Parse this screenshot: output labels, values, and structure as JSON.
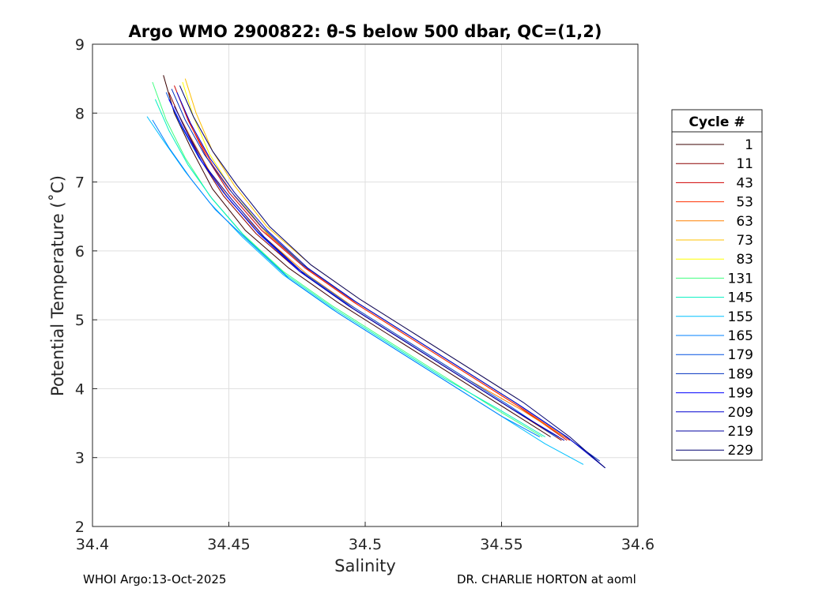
{
  "chart_data": {
    "type": "line",
    "title": "Argo WMO 2900822: θ-S below 500 dbar,  QC=(1,2)",
    "xlabel": "Salinity",
    "ylabel": "Potential Temperature (˚C)",
    "xlim": [
      34.4,
      34.6
    ],
    "ylim": [
      2,
      9
    ],
    "xticks": [
      "34.4",
      "34.45",
      "34.5",
      "34.55",
      "34.6"
    ],
    "yticks": [
      "2",
      "3",
      "4",
      "5",
      "6",
      "7",
      "8",
      "9"
    ],
    "grid": true,
    "legend": {
      "title": "Cycle #",
      "placement": "right-outside"
    },
    "series": [
      {
        "name": "1",
        "color": "#3b0000",
        "x": [
          34.426,
          34.43,
          34.436,
          34.444,
          34.456,
          34.472,
          34.49,
          34.51,
          34.53,
          34.55,
          34.568
        ],
        "y": [
          8.55,
          8.0,
          7.5,
          6.9,
          6.3,
          5.75,
          5.25,
          4.75,
          4.25,
          3.75,
          3.3
        ]
      },
      {
        "name": "11",
        "color": "#8b0000",
        "x": [
          34.428,
          34.433,
          34.44,
          34.448,
          34.46,
          34.476,
          34.494,
          34.514,
          34.534,
          34.554,
          34.572
        ],
        "y": [
          8.3,
          7.85,
          7.3,
          6.8,
          6.25,
          5.7,
          5.2,
          4.7,
          4.2,
          3.7,
          3.25
        ]
      },
      {
        "name": "43",
        "color": "#d00000",
        "x": [
          34.43,
          34.435,
          34.442,
          34.45,
          34.462,
          34.478,
          34.496,
          34.516,
          34.536,
          34.556,
          34.574
        ],
        "y": [
          8.4,
          7.9,
          7.35,
          6.85,
          6.3,
          5.75,
          5.25,
          4.75,
          4.25,
          3.75,
          3.25
        ]
      },
      {
        "name": "53",
        "color": "#ff3000",
        "x": [
          34.432,
          34.437,
          34.444,
          34.452,
          34.464,
          34.48,
          34.498,
          34.518,
          34.538,
          34.558,
          34.575
        ],
        "y": [
          8.2,
          7.75,
          7.25,
          6.8,
          6.25,
          5.7,
          5.2,
          4.7,
          4.2,
          3.7,
          3.25
        ]
      },
      {
        "name": "63",
        "color": "#ff8000",
        "x": [
          34.43,
          34.436,
          34.443,
          34.451,
          34.463,
          34.479,
          34.497,
          34.517,
          34.537,
          34.557,
          34.573
        ],
        "y": [
          8.1,
          7.65,
          7.15,
          6.7,
          6.2,
          5.65,
          5.15,
          4.65,
          4.15,
          3.7,
          3.3
        ]
      },
      {
        "name": "73",
        "color": "#ffc000",
        "x": [
          34.434,
          34.438,
          34.444,
          34.452,
          34.464,
          34.48,
          34.498,
          34.518,
          34.538,
          34.556
        ],
        "y": [
          8.5,
          8.0,
          7.45,
          6.95,
          6.35,
          5.8,
          5.3,
          4.8,
          4.3,
          3.85
        ]
      },
      {
        "name": "83",
        "color": "#ffff00",
        "x": [
          34.433,
          34.437,
          34.443,
          34.451,
          34.463,
          34.479,
          34.497,
          34.517,
          34.537,
          34.555
        ],
        "y": [
          8.45,
          7.95,
          7.4,
          6.9,
          6.3,
          5.75,
          5.25,
          4.75,
          4.25,
          3.8
        ]
      },
      {
        "name": "131",
        "color": "#40ff80",
        "x": [
          34.422,
          34.427,
          34.434,
          34.443,
          34.455,
          34.47,
          34.488,
          34.508,
          34.528,
          34.548,
          34.565
        ],
        "y": [
          8.45,
          7.9,
          7.35,
          6.8,
          6.25,
          5.7,
          5.2,
          4.7,
          4.2,
          3.7,
          3.3
        ]
      },
      {
        "name": "145",
        "color": "#00f0c0",
        "x": [
          34.423,
          34.428,
          34.435,
          34.444,
          34.456,
          34.471,
          34.489,
          34.509,
          34.529,
          34.549,
          34.566
        ],
        "y": [
          8.2,
          7.75,
          7.25,
          6.75,
          6.2,
          5.65,
          5.15,
          4.65,
          4.15,
          3.7,
          3.3
        ]
      },
      {
        "name": "155",
        "color": "#00c0ff",
        "x": [
          34.42,
          34.426,
          34.434,
          34.443,
          34.455,
          34.47,
          34.488,
          34.508,
          34.528,
          34.548,
          34.566,
          34.58
        ],
        "y": [
          7.95,
          7.6,
          7.15,
          6.7,
          6.2,
          5.65,
          5.15,
          4.65,
          4.15,
          3.65,
          3.2,
          2.9
        ]
      },
      {
        "name": "165",
        "color": "#0080ff",
        "x": [
          34.422,
          34.428,
          34.436,
          34.445,
          34.457,
          34.472,
          34.49,
          34.51,
          34.53,
          34.55,
          34.564
        ],
        "y": [
          7.9,
          7.5,
          7.05,
          6.6,
          6.15,
          5.6,
          5.1,
          4.6,
          4.1,
          3.6,
          3.3
        ]
      },
      {
        "name": "179",
        "color": "#0050e0",
        "x": [
          34.427,
          34.432,
          34.439,
          34.448,
          34.46,
          34.475,
          34.493,
          34.513,
          34.533,
          34.553,
          34.57
        ],
        "y": [
          8.3,
          7.85,
          7.35,
          6.85,
          6.3,
          5.75,
          5.25,
          4.75,
          4.25,
          3.75,
          3.3
        ]
      },
      {
        "name": "189",
        "color": "#0030c0",
        "x": [
          34.429,
          34.434,
          34.441,
          34.45,
          34.462,
          34.477,
          34.495,
          34.515,
          34.535,
          34.555,
          34.572,
          34.586
        ],
        "y": [
          8.35,
          7.9,
          7.4,
          6.9,
          6.35,
          5.8,
          5.3,
          4.8,
          4.3,
          3.8,
          3.35,
          2.95
        ]
      },
      {
        "name": "199",
        "color": "#0000ff",
        "x": [
          34.428,
          34.433,
          34.44,
          34.449,
          34.461,
          34.476,
          34.494,
          34.514,
          34.534,
          34.554,
          34.571
        ],
        "y": [
          8.2,
          7.8,
          7.3,
          6.8,
          6.25,
          5.7,
          5.2,
          4.7,
          4.2,
          3.7,
          3.3
        ]
      },
      {
        "name": "209",
        "color": "#0000d0",
        "x": [
          34.431,
          34.436,
          34.443,
          34.452,
          34.464,
          34.479,
          34.497,
          34.517,
          34.537,
          34.557,
          34.574,
          34.588
        ],
        "y": [
          8.3,
          7.85,
          7.35,
          6.85,
          6.3,
          5.75,
          5.25,
          4.75,
          4.25,
          3.75,
          3.3,
          2.85
        ]
      },
      {
        "name": "219",
        "color": "#0000a0",
        "x": [
          34.43,
          34.435,
          34.442,
          34.451,
          34.463,
          34.478,
          34.496,
          34.516,
          34.536,
          34.556,
          34.573
        ],
        "y": [
          8.1,
          7.7,
          7.2,
          6.75,
          6.2,
          5.65,
          5.15,
          4.65,
          4.15,
          3.65,
          3.25
        ]
      },
      {
        "name": "229",
        "color": "#000070",
        "x": [
          34.432,
          34.437,
          34.444,
          34.453,
          34.465,
          34.48,
          34.498,
          34.518,
          34.538,
          34.558,
          34.575,
          34.588
        ],
        "y": [
          8.4,
          7.95,
          7.45,
          6.95,
          6.35,
          5.8,
          5.3,
          4.8,
          4.3,
          3.8,
          3.3,
          2.85
        ]
      }
    ]
  },
  "footer": {
    "left": "WHOI Argo:13-Oct-2025",
    "right": "DR. CHARLIE HORTON at aoml"
  }
}
